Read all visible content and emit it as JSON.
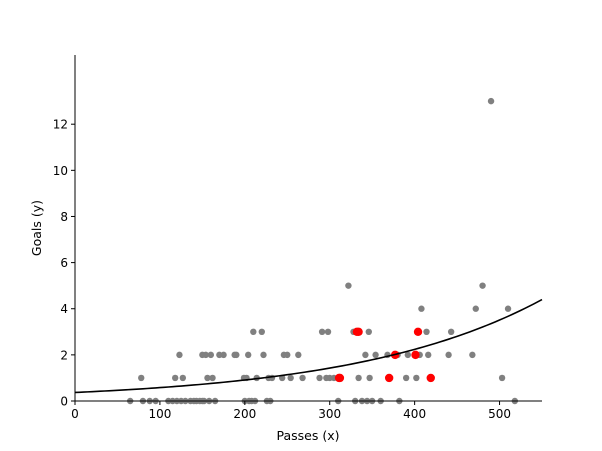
{
  "chart_data": {
    "type": "scatter",
    "xlabel": "Passes (x)",
    "ylabel": "Goals (y)",
    "xlim": [
      0,
      550
    ],
    "ylim": [
      0,
      15
    ],
    "xticks": [
      0,
      100,
      200,
      300,
      400,
      500
    ],
    "yticks": [
      0,
      2,
      4,
      6,
      8,
      10,
      12
    ],
    "grid": false,
    "series": [
      {
        "color": "#808080",
        "points": [
          [
            65,
            0
          ],
          [
            78,
            1
          ],
          [
            80,
            0
          ],
          [
            88,
            0
          ],
          [
            95,
            0
          ],
          [
            110,
            0
          ],
          [
            115,
            0
          ],
          [
            118,
            1
          ],
          [
            120,
            0
          ],
          [
            123,
            2
          ],
          [
            125,
            0
          ],
          [
            127,
            1
          ],
          [
            130,
            0
          ],
          [
            136,
            0
          ],
          [
            140,
            0
          ],
          [
            143,
            0
          ],
          [
            147,
            0
          ],
          [
            150,
            0
          ],
          [
            150,
            2
          ],
          [
            152,
            0
          ],
          [
            154,
            2
          ],
          [
            156,
            1
          ],
          [
            158,
            0
          ],
          [
            160,
            2
          ],
          [
            162,
            1
          ],
          [
            165,
            0
          ],
          [
            170,
            2
          ],
          [
            175,
            2
          ],
          [
            188,
            2
          ],
          [
            190,
            2
          ],
          [
            199,
            1
          ],
          [
            200,
            0
          ],
          [
            202,
            1
          ],
          [
            204,
            2
          ],
          [
            205,
            0
          ],
          [
            208,
            0
          ],
          [
            210,
            3
          ],
          [
            212,
            0
          ],
          [
            214,
            1
          ],
          [
            220,
            3
          ],
          [
            222,
            2
          ],
          [
            226,
            0
          ],
          [
            228,
            1
          ],
          [
            230,
            0
          ],
          [
            232,
            1
          ],
          [
            244,
            1
          ],
          [
            246,
            2
          ],
          [
            250,
            2
          ],
          [
            254,
            1
          ],
          [
            263,
            2
          ],
          [
            268,
            1
          ],
          [
            288,
            1
          ],
          [
            291,
            3
          ],
          [
            296,
            1
          ],
          [
            298,
            3
          ],
          [
            300,
            1
          ],
          [
            305,
            1
          ],
          [
            310,
            0
          ],
          [
            312,
            1
          ],
          [
            322,
            5
          ],
          [
            328,
            3
          ],
          [
            330,
            0
          ],
          [
            332,
            3
          ],
          [
            334,
            1
          ],
          [
            338,
            0
          ],
          [
            342,
            2
          ],
          [
            344,
            0
          ],
          [
            346,
            3
          ],
          [
            347,
            1
          ],
          [
            350,
            0
          ],
          [
            354,
            2
          ],
          [
            360,
            0
          ],
          [
            368,
            2
          ],
          [
            378,
            2
          ],
          [
            380,
            2
          ],
          [
            382,
            0
          ],
          [
            390,
            1
          ],
          [
            392,
            2
          ],
          [
            402,
            1
          ],
          [
            406,
            2
          ],
          [
            408,
            4
          ],
          [
            414,
            3
          ],
          [
            416,
            2
          ],
          [
            418,
            1
          ],
          [
            440,
            2
          ],
          [
            443,
            3
          ],
          [
            468,
            2
          ],
          [
            472,
            4
          ],
          [
            480,
            5
          ],
          [
            490,
            13
          ],
          [
            503,
            1
          ],
          [
            510,
            4
          ],
          [
            518,
            0
          ]
        ]
      },
      {
        "color": "#ff0000",
        "points": [
          [
            311,
            1
          ],
          [
            312,
            1
          ],
          [
            332,
            3
          ],
          [
            334,
            3
          ],
          [
            370,
            1
          ],
          [
            377,
            2
          ],
          [
            401,
            2
          ],
          [
            404,
            3
          ],
          [
            419,
            1
          ]
        ]
      }
    ],
    "curve": {
      "type": "exponential",
      "a": 0.37,
      "b": 0.0045,
      "color": "#000000"
    }
  }
}
